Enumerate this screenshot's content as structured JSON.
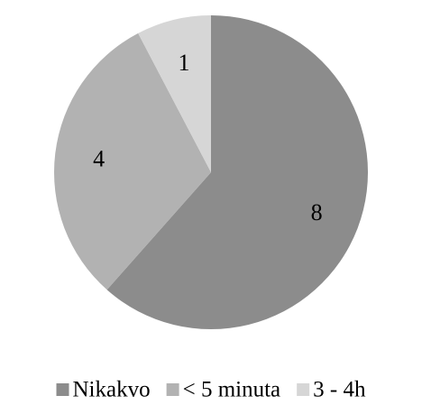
{
  "chart_data": {
    "type": "pie",
    "categories": [
      "Nikakvo",
      "< 5 minuta",
      "3 - 4h"
    ],
    "values": [
      8,
      4,
      1
    ],
    "colors": [
      "#8c8c8c",
      "#b2b2b2",
      "#d6d6d6"
    ],
    "data_labels": [
      "8",
      "4",
      "1"
    ],
    "start_angle_deg": 0,
    "direction": "clockwise",
    "legend": {
      "position": "bottom",
      "entries": [
        "Nikakvo",
        "< 5 minuta",
        "3 - 4h"
      ]
    }
  }
}
